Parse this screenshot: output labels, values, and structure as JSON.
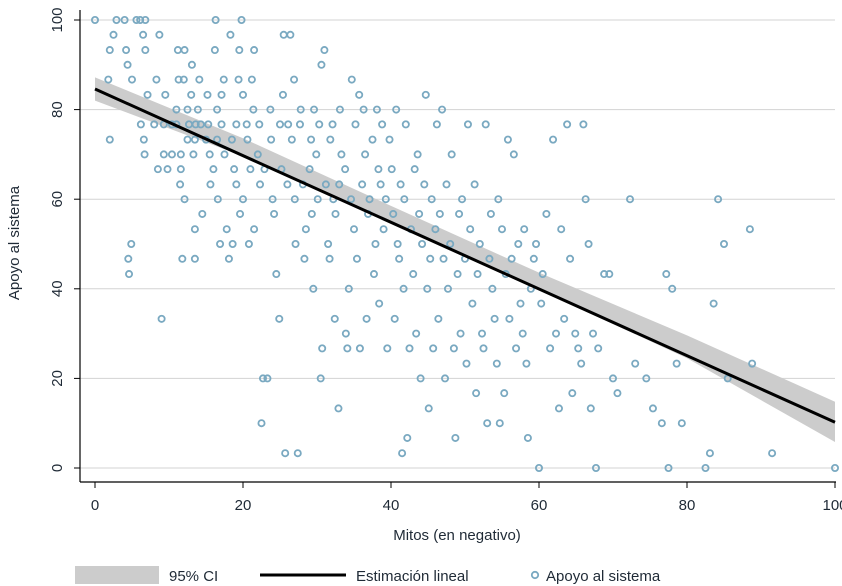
{
  "chart_data": {
    "type": "scatter",
    "xlabel": "Mitos (en negativo)",
    "ylabel": "Apoyo al sistema",
    "xlim": [
      0,
      100
    ],
    "ylim": [
      0,
      100
    ],
    "x_ticks": [
      "0",
      "20",
      "40",
      "60",
      "80",
      "100"
    ],
    "y_ticks": [
      "0",
      "20",
      "40",
      "60",
      "80",
      "100"
    ],
    "grid": true,
    "legend_placement": "bottom",
    "colors": {
      "points": "#7aa9c1",
      "fit": "#000000",
      "ci": "#cccccc",
      "grid": "#d3d3d3",
      "axis": "#000000"
    },
    "legend": [
      {
        "key": "ci",
        "label": "95% CI"
      },
      {
        "key": "fit",
        "label": "Estimación lineal"
      },
      {
        "key": "points",
        "label": "Apoyo al sistema"
      }
    ],
    "fit_line": {
      "x": [
        0,
        100
      ],
      "y": [
        84.6,
        10.2
      ]
    },
    "ci_band": {
      "x": [
        0,
        20,
        40,
        60,
        80,
        100
      ],
      "lower": [
        82.0,
        69.6,
        54.9,
        39.8,
        24.5,
        5.8
      ],
      "upper": [
        87.2,
        73.6,
        58.5,
        43.6,
        29.6,
        14.8
      ]
    },
    "series": [
      {
        "name": "Apoyo al sistema",
        "points": [
          [
            0,
            100
          ],
          [
            2,
            73.3
          ],
          [
            1.8,
            86.7
          ],
          [
            2,
            93.3
          ],
          [
            2.5,
            96.7
          ],
          [
            2.9,
            100
          ],
          [
            4,
            100
          ],
          [
            4.2,
            93.3
          ],
          [
            4.5,
            46.7
          ],
          [
            4.6,
            43.3
          ],
          [
            4.9,
            50
          ],
          [
            4.4,
            90
          ],
          [
            5,
            86.7
          ],
          [
            5.6,
            100
          ],
          [
            6.1,
            100
          ],
          [
            6.8,
            100
          ],
          [
            6.5,
            96.7
          ],
          [
            6.8,
            93.3
          ],
          [
            6.2,
            76.7
          ],
          [
            6.6,
            73.3
          ],
          [
            6.7,
            70
          ],
          [
            7.1,
            83.3
          ],
          [
            8,
            76.7
          ],
          [
            8.3,
            86.7
          ],
          [
            8.5,
            66.7
          ],
          [
            8.7,
            96.7
          ],
          [
            9,
            33.3
          ],
          [
            9.3,
            76.7
          ],
          [
            9.3,
            70
          ],
          [
            9.5,
            83.3
          ],
          [
            9.8,
            66.7
          ],
          [
            10.4,
            76.7
          ],
          [
            10.4,
            70
          ],
          [
            11,
            80
          ],
          [
            11,
            76.7
          ],
          [
            11.2,
            93.3
          ],
          [
            11.3,
            86.7
          ],
          [
            11.5,
            63.3
          ],
          [
            11.6,
            70
          ],
          [
            11.6,
            66.7
          ],
          [
            11.8,
            46.7
          ],
          [
            12,
            86.7
          ],
          [
            12.1,
            93.3
          ],
          [
            12.1,
            60
          ],
          [
            12.5,
            73.3
          ],
          [
            12.5,
            80
          ],
          [
            12.7,
            76.7
          ],
          [
            13,
            83.3
          ],
          [
            13.1,
            90
          ],
          [
            13.3,
            70
          ],
          [
            13.5,
            73.3
          ],
          [
            13.5,
            46.7
          ],
          [
            13.5,
            53.3
          ],
          [
            13.6,
            76.7
          ],
          [
            13.9,
            80
          ],
          [
            14.1,
            86.7
          ],
          [
            14.3,
            76.7
          ],
          [
            14.5,
            56.7
          ],
          [
            15,
            73.3
          ],
          [
            15.2,
            83.3
          ],
          [
            15.3,
            76.7
          ],
          [
            15.5,
            70
          ],
          [
            15.6,
            63.3
          ],
          [
            16,
            66.7
          ],
          [
            16.2,
            93.3
          ],
          [
            16.3,
            100
          ],
          [
            16.5,
            80
          ],
          [
            16.5,
            73.3
          ],
          [
            16.6,
            60
          ],
          [
            16.9,
            50
          ],
          [
            17.1,
            76.7
          ],
          [
            17.1,
            83.3
          ],
          [
            17.4,
            86.7
          ],
          [
            17.5,
            70
          ],
          [
            17.8,
            53.3
          ],
          [
            18.1,
            46.7
          ],
          [
            18.3,
            96.7
          ],
          [
            18.5,
            73.3
          ],
          [
            18.6,
            50
          ],
          [
            18.8,
            66.7
          ],
          [
            19.1,
            63.3
          ],
          [
            19.1,
            76.7
          ],
          [
            19.4,
            86.7
          ],
          [
            19.5,
            93.3
          ],
          [
            19.6,
            56.7
          ],
          [
            19.8,
            100
          ],
          [
            20,
            83.3
          ],
          [
            20,
            60
          ],
          [
            20.5,
            76.7
          ],
          [
            20.6,
            73.3
          ],
          [
            20.8,
            50
          ],
          [
            21,
            66.7
          ],
          [
            21.2,
            86.7
          ],
          [
            21.4,
            80
          ],
          [
            21.5,
            93.3
          ],
          [
            21.5,
            53.3
          ],
          [
            22,
            70
          ],
          [
            22.2,
            76.7
          ],
          [
            22.3,
            63.3
          ],
          [
            22.5,
            10
          ],
          [
            22.7,
            20
          ],
          [
            22.9,
            66.7
          ],
          [
            23.3,
            20
          ],
          [
            23.7,
            80
          ],
          [
            23.8,
            73.3
          ],
          [
            24,
            60
          ],
          [
            24.2,
            56.7
          ],
          [
            24.5,
            43.3
          ],
          [
            24.9,
            33.3
          ],
          [
            25,
            76.7
          ],
          [
            25.2,
            66.7
          ],
          [
            25.4,
            83.3
          ],
          [
            25.5,
            96.7
          ],
          [
            25.7,
            3.3
          ],
          [
            26,
            63.3
          ],
          [
            26.1,
            76.7
          ],
          [
            26.4,
            96.7
          ],
          [
            26.6,
            73.3
          ],
          [
            26.9,
            86.7
          ],
          [
            27,
            60
          ],
          [
            27.1,
            50
          ],
          [
            27.4,
            3.3
          ],
          [
            27.7,
            76.7
          ],
          [
            27.8,
            80
          ],
          [
            28.1,
            63.3
          ],
          [
            28.3,
            46.7
          ],
          [
            28.5,
            53.3
          ],
          [
            29,
            66.7
          ],
          [
            29.2,
            73.3
          ],
          [
            29.3,
            56.7
          ],
          [
            29.5,
            40
          ],
          [
            29.6,
            80
          ],
          [
            29.9,
            70
          ],
          [
            30.1,
            60
          ],
          [
            30.3,
            76.7
          ],
          [
            30.5,
            20
          ],
          [
            30.6,
            90
          ],
          [
            30.7,
            26.7
          ],
          [
            31,
            93.3
          ],
          [
            31.2,
            63.3
          ],
          [
            31.5,
            50
          ],
          [
            31.7,
            46.7
          ],
          [
            31.8,
            73.3
          ],
          [
            32.1,
            76.7
          ],
          [
            32.2,
            60
          ],
          [
            32.4,
            33.3
          ],
          [
            32.5,
            56.7
          ],
          [
            32.9,
            13.3
          ],
          [
            33,
            63.3
          ],
          [
            33.1,
            80
          ],
          [
            33.3,
            70
          ],
          [
            33.8,
            66.7
          ],
          [
            33.9,
            30
          ],
          [
            34.1,
            26.7
          ],
          [
            34.3,
            40
          ],
          [
            34.6,
            60
          ],
          [
            34.7,
            86.7
          ],
          [
            35,
            53.3
          ],
          [
            35.2,
            76.7
          ],
          [
            35.4,
            46.7
          ],
          [
            35.7,
            83.3
          ],
          [
            35.8,
            26.7
          ],
          [
            36.1,
            63.3
          ],
          [
            36.3,
            80
          ],
          [
            36.5,
            70
          ],
          [
            36.7,
            33.3
          ],
          [
            36.9,
            56.7
          ],
          [
            37.1,
            60
          ],
          [
            37.5,
            73.3
          ],
          [
            37.7,
            43.3
          ],
          [
            37.9,
            50
          ],
          [
            38.1,
            80
          ],
          [
            38.3,
            66.7
          ],
          [
            38.4,
            36.7
          ],
          [
            38.6,
            63.3
          ],
          [
            38.8,
            76.7
          ],
          [
            39,
            53.3
          ],
          [
            39.3,
            60
          ],
          [
            39.5,
            26.7
          ],
          [
            39.8,
            73.3
          ],
          [
            40.1,
            66.7
          ],
          [
            40.3,
            56.7
          ],
          [
            40.5,
            33.3
          ],
          [
            40.7,
            80
          ],
          [
            40.9,
            50
          ],
          [
            41.1,
            46.7
          ],
          [
            41.3,
            63.3
          ],
          [
            41.5,
            3.3
          ],
          [
            41.7,
            40
          ],
          [
            41.8,
            60
          ],
          [
            42,
            76.7
          ],
          [
            42.2,
            6.7
          ],
          [
            42.5,
            26.7
          ],
          [
            42.7,
            53.3
          ],
          [
            43,
            43.3
          ],
          [
            43.2,
            66.7
          ],
          [
            43.4,
            30
          ],
          [
            43.6,
            70
          ],
          [
            43.8,
            56.7
          ],
          [
            44,
            20
          ],
          [
            44.2,
            50
          ],
          [
            44.5,
            63.3
          ],
          [
            44.7,
            83.3
          ],
          [
            44.9,
            40
          ],
          [
            45.1,
            13.3
          ],
          [
            45.3,
            46.7
          ],
          [
            45.5,
            60
          ],
          [
            45.7,
            26.7
          ],
          [
            46,
            53.3
          ],
          [
            46.2,
            76.7
          ],
          [
            46.4,
            33.3
          ],
          [
            46.6,
            56.7
          ],
          [
            46.9,
            80
          ],
          [
            47.1,
            46.7
          ],
          [
            47.3,
            20
          ],
          [
            47.5,
            63.3
          ],
          [
            47.7,
            40
          ],
          [
            48,
            50
          ],
          [
            48.2,
            70
          ],
          [
            48.5,
            26.7
          ],
          [
            48.7,
            6.7
          ],
          [
            49,
            43.3
          ],
          [
            49.2,
            56.7
          ],
          [
            49.4,
            30
          ],
          [
            49.6,
            60
          ],
          [
            50,
            46.7
          ],
          [
            50.2,
            23.3
          ],
          [
            50.4,
            76.7
          ],
          [
            50.7,
            53.3
          ],
          [
            51,
            36.7
          ],
          [
            51.3,
            63.3
          ],
          [
            51.5,
            16.7
          ],
          [
            51.7,
            43.3
          ],
          [
            52,
            50
          ],
          [
            52.3,
            30
          ],
          [
            52.5,
            26.7
          ],
          [
            52.8,
            76.7
          ],
          [
            53,
            10
          ],
          [
            53.3,
            46.7
          ],
          [
            53.5,
            56.7
          ],
          [
            53.7,
            40
          ],
          [
            54,
            33.3
          ],
          [
            54.3,
            23.3
          ],
          [
            54.5,
            60
          ],
          [
            54.7,
            10
          ],
          [
            55,
            53.3
          ],
          [
            55.3,
            16.7
          ],
          [
            55.5,
            43.3
          ],
          [
            55.8,
            73.3
          ],
          [
            56,
            33.3
          ],
          [
            56.3,
            46.7
          ],
          [
            56.6,
            70
          ],
          [
            56.9,
            26.7
          ],
          [
            57.2,
            50
          ],
          [
            57.5,
            36.7
          ],
          [
            57.8,
            30
          ],
          [
            58,
            53.3
          ],
          [
            58.3,
            23.3
          ],
          [
            58.5,
            6.7
          ],
          [
            58.9,
            40
          ],
          [
            59.3,
            46.7
          ],
          [
            59.6,
            50
          ],
          [
            60,
            0
          ],
          [
            60.3,
            36.7
          ],
          [
            60.5,
            43.3
          ],
          [
            61,
            56.7
          ],
          [
            61.5,
            26.7
          ],
          [
            61.9,
            73.3
          ],
          [
            62.3,
            30
          ],
          [
            62.7,
            13.3
          ],
          [
            63,
            53.3
          ],
          [
            63.4,
            33.3
          ],
          [
            63.8,
            76.7
          ],
          [
            64.2,
            46.7
          ],
          [
            64.5,
            16.7
          ],
          [
            64.9,
            30
          ],
          [
            65.3,
            26.7
          ],
          [
            65.7,
            23.3
          ],
          [
            66,
            76.7
          ],
          [
            66.3,
            60
          ],
          [
            66.7,
            50
          ],
          [
            67,
            13.3
          ],
          [
            67.3,
            30
          ],
          [
            67.7,
            0
          ],
          [
            68,
            26.7
          ],
          [
            68.8,
            43.3
          ],
          [
            69.5,
            43.3
          ],
          [
            70,
            20
          ],
          [
            70.6,
            16.7
          ],
          [
            72.3,
            60
          ],
          [
            73,
            23.3
          ],
          [
            74.5,
            20
          ],
          [
            75.4,
            13.3
          ],
          [
            76.6,
            10
          ],
          [
            77.2,
            43.3
          ],
          [
            77.5,
            0
          ],
          [
            78,
            40
          ],
          [
            78.6,
            23.3
          ],
          [
            79.3,
            10
          ],
          [
            82.5,
            0
          ],
          [
            83.1,
            3.3
          ],
          [
            83.6,
            36.7
          ],
          [
            84.2,
            60
          ],
          [
            85,
            50
          ],
          [
            85.5,
            20
          ],
          [
            88.5,
            53.3
          ],
          [
            88.8,
            23.3
          ],
          [
            91.5,
            3.3
          ],
          [
            100,
            0
          ]
        ]
      }
    ]
  }
}
